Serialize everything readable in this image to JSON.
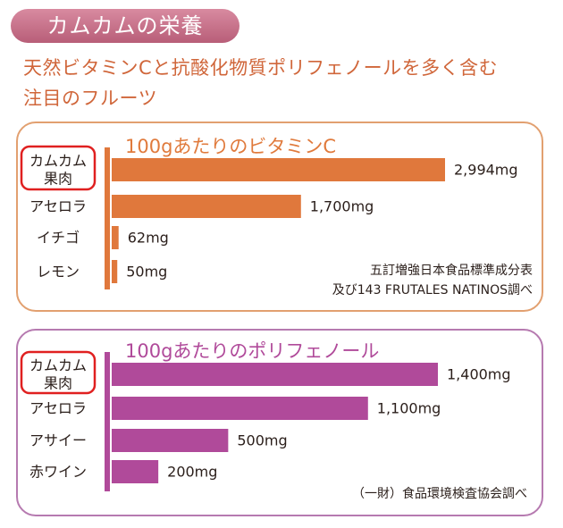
{
  "banner": {
    "title": "カムカムの栄養"
  },
  "headline": {
    "line1": "天然ビタミンCと抗酸化物質ポリフェノールを多く含む",
    "line2": "注目のフルーツ"
  },
  "colors": {
    "vitamin_bar": "#e0783c",
    "polyphenol_bar": "#b04a9a",
    "vitamin_title": "#e07a3c",
    "polyphenol_title": "#b04a9a",
    "highlight_box": "#e02020"
  },
  "chart_data": [
    {
      "type": "bar",
      "orientation": "horizontal",
      "title": "100gあたりのビタミンC",
      "unit": "mg",
      "categories": [
        "カムカム\n果肉",
        "アセロラ",
        "イチゴ",
        "レモン"
      ],
      "values": [
        2994,
        1700,
        62,
        50
      ],
      "value_labels": [
        "2,994mg",
        "1,700mg",
        "62mg",
        "50mg"
      ],
      "highlighted_category": 0,
      "source": [
        "五訂増強日本食品標準成分表",
        "及び143 FRUTALES NATINOS調べ"
      ],
      "grid": false,
      "legend": "none"
    },
    {
      "type": "bar",
      "orientation": "horizontal",
      "title": "100gあたりのポリフェノール",
      "unit": "mg",
      "categories": [
        "カムカム\n果肉",
        "アセロラ",
        "アサイー",
        "赤ワイン"
      ],
      "values": [
        1400,
        1100,
        500,
        200
      ],
      "value_labels": [
        "1,400mg",
        "1,100mg",
        "500mg",
        "200mg"
      ],
      "highlighted_category": 0,
      "source": [
        "（一財）食品環境検査協会調べ"
      ],
      "grid": false,
      "legend": "none"
    }
  ]
}
